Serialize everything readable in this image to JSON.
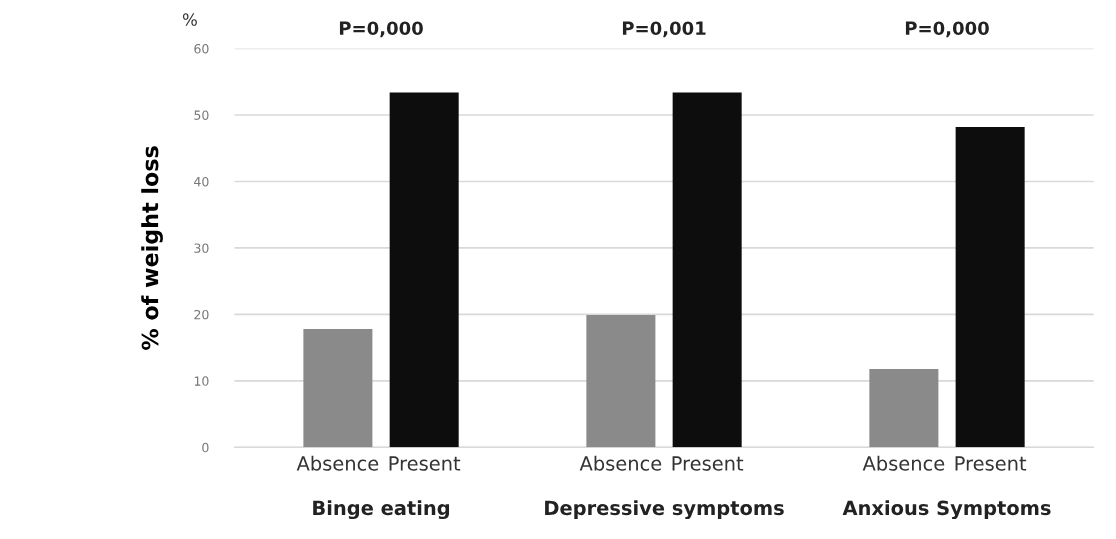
{
  "chart_data": {
    "type": "bar",
    "ylabel": "% of weight loss",
    "categories": [
      "Absence",
      "Present",
      "Absence",
      "Present",
      "Absence",
      "Present"
    ],
    "values": [
      17.8,
      53.4,
      19.9,
      53.4,
      11.8,
      48.2
    ],
    "colors": [
      "#8a8a8a",
      "#0d0d0d",
      "#8a8a8a",
      "#0d0d0d",
      "#8a8a8a",
      "#0d0d0d"
    ],
    "ylim": [
      0,
      60
    ],
    "yticks": [
      0,
      10,
      20,
      30,
      40,
      50,
      60
    ],
    "grid": "y",
    "annotations": [
      "%",
      "P=0,000",
      "P=0,001",
      "P=0,000",
      "Binge eating",
      "Depressive symptoms",
      "Anxious Symptoms"
    ]
  }
}
